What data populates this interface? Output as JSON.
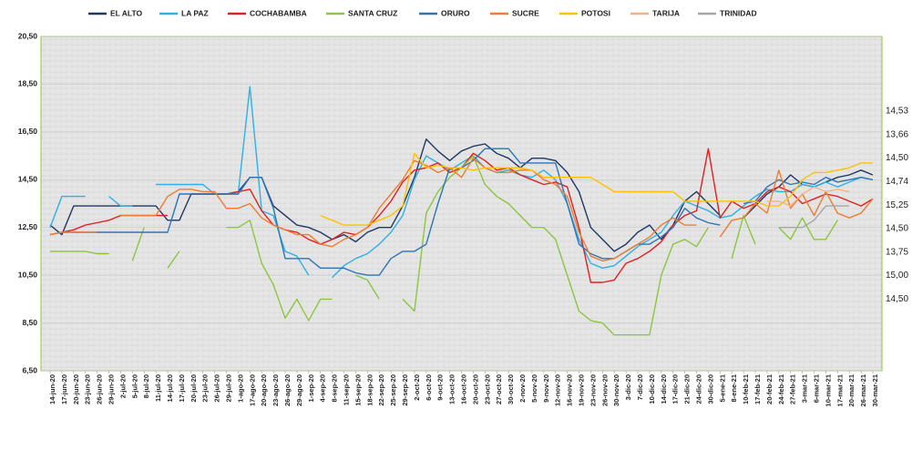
{
  "chart_data": {
    "type": "line",
    "categories": [
      "14-jun-20",
      "17-jun-20",
      "20-jun-20",
      "23-jun-20",
      "26-jun-20",
      "29-jun-20",
      "2-jul-20",
      "5-jul-20",
      "8-jul-20",
      "11-jul-20",
      "14-jul-20",
      "17-jul-20",
      "20-jul-20",
      "23-jul-20",
      "26-jul-20",
      "29-jul-20",
      "1-ago-20",
      "17-ago-20",
      "20-ago-20",
      "23-ago-20",
      "26-ago-20",
      "29-ago-20",
      "1-sep-20",
      "4-sep-20",
      "8-sep-20",
      "11-sep-20",
      "15-sep-20",
      "18-sep-20",
      "22-sep-20",
      "25-sep-20",
      "29-sep-20",
      "2-oct-20",
      "6-oct-20",
      "9-oct-20",
      "13-oct-20",
      "16-oct-20",
      "20-oct-20",
      "23-oct-20",
      "27-oct-20",
      "30-oct-20",
      "2-nov-20",
      "5-nov-20",
      "9-nov-20",
      "12-nov-20",
      "16-nov-20",
      "19-nov-20",
      "23-nov-20",
      "26-nov-20",
      "30-nov-20",
      "3-dic-20",
      "7-dic-20",
      "10-dic-20",
      "14-dic-20",
      "17-dic-20",
      "21-dic-20",
      "24-dic-20",
      "30-dic-20",
      "5-ene-21",
      "8-ene-21",
      "10-feb-21",
      "17-feb-21",
      "20-feb-21",
      "24-feb-21",
      "27-feb-21",
      "3-mar-21",
      "6-mar-21",
      "10-mar-21",
      "17-mar-21",
      "20-mar-21",
      "26-mar-21",
      "30-mar-21"
    ],
    "ylim": [
      6.5,
      20.5
    ],
    "yticks": [
      {
        "value": 6.5,
        "label": "6,50"
      },
      {
        "value": 8.5,
        "label": "8,50"
      },
      {
        "value": 10.5,
        "label": "10,50"
      },
      {
        "value": 12.5,
        "label": "12,50"
      },
      {
        "value": 14.5,
        "label": "14,50"
      },
      {
        "value": 16.5,
        "label": "16,50"
      },
      {
        "value": 18.5,
        "label": "18,50"
      },
      {
        "value": 20.5,
        "label": "20,50"
      }
    ],
    "grid": true,
    "legend": "top",
    "series": [
      {
        "name": "EL ALTO",
        "color": "#1f3864",
        "summary": {
          "value": 14.74,
          "label": "14,74"
        },
        "values": [
          12.6,
          12.2,
          13.4,
          13.4,
          13.4,
          13.4,
          13.4,
          13.4,
          13.4,
          13.4,
          12.8,
          12.8,
          13.9,
          13.9,
          13.9,
          13.9,
          14.0,
          14.6,
          14.6,
          13.4,
          13.0,
          12.6,
          12.5,
          12.3,
          12.0,
          12.2,
          11.9,
          12.3,
          12.5,
          12.5,
          13.4,
          14.6,
          16.2,
          15.7,
          15.3,
          15.7,
          15.9,
          16.0,
          15.6,
          15.4,
          15.0,
          15.4,
          15.4,
          15.3,
          14.8,
          14.0,
          12.5,
          12.0,
          11.5,
          11.8,
          12.3,
          12.6,
          12.0,
          12.6,
          13.6,
          14.0,
          13.5,
          13.0,
          null,
          12.9,
          13.4,
          13.9,
          14.2,
          14.7,
          14.3,
          14.2,
          14.4,
          14.6,
          14.7,
          14.9,
          14.7
        ]
      },
      {
        "name": "LA PAZ",
        "color": "#2eb0e8",
        "summary": {
          "value": 14.53,
          "label": "14,53"
        },
        "values": [
          12.5,
          13.8,
          13.8,
          13.8,
          null,
          13.8,
          13.4,
          13.4,
          null,
          14.3,
          14.3,
          14.3,
          14.3,
          14.3,
          13.9,
          13.9,
          13.9,
          18.4,
          13.2,
          13.0,
          11.5,
          11.3,
          10.5,
          null,
          10.4,
          10.9,
          11.2,
          11.4,
          11.8,
          12.3,
          13.0,
          14.5,
          15.5,
          15.2,
          14.9,
          15.2,
          15.5,
          15.0,
          14.8,
          14.9,
          14.7,
          14.6,
          14.9,
          14.5,
          13.5,
          12.0,
          11.0,
          10.8,
          10.9,
          11.3,
          11.7,
          12.0,
          12.3,
          13.0,
          13.6,
          13.4,
          13.2,
          12.9,
          13.0,
          13.4,
          13.8,
          14.1,
          14.0,
          14.0,
          14.3,
          14.2,
          14.4,
          14.2,
          14.4,
          14.6,
          14.5
        ]
      },
      {
        "name": "COCHABAMBA",
        "color": "#e02020",
        "summary": {
          "value": 13.66,
          "label": "13,66"
        },
        "values": [
          12.2,
          12.3,
          12.4,
          12.6,
          12.7,
          12.8,
          13.0,
          13.0,
          13.0,
          13.0,
          13.0,
          null,
          13.9,
          13.9,
          13.9,
          13.9,
          14.0,
          14.1,
          13.2,
          12.6,
          12.4,
          12.3,
          12.0,
          11.8,
          12.0,
          12.3,
          12.2,
          12.5,
          13.0,
          13.6,
          14.4,
          14.9,
          15.0,
          15.2,
          14.8,
          15.0,
          15.6,
          15.3,
          14.9,
          15.0,
          14.7,
          14.5,
          14.3,
          14.4,
          14.2,
          12.5,
          10.2,
          10.2,
          10.3,
          11.0,
          11.2,
          11.5,
          11.9,
          12.6,
          13.0,
          13.2,
          15.8,
          12.9,
          13.6,
          13.3,
          13.5,
          14.0,
          14.2,
          14.0,
          13.5,
          13.7,
          13.9,
          13.8,
          13.6,
          13.4,
          13.7
        ]
      },
      {
        "name": "SANTA CRUZ",
        "color": "#8cc63f",
        "summary": {
          "value": 15.0,
          "label": "15,00"
        },
        "values": [
          11.5,
          11.5,
          11.5,
          11.5,
          11.4,
          11.4,
          null,
          11.1,
          12.5,
          null,
          10.8,
          11.5,
          null,
          11.1,
          null,
          12.5,
          12.5,
          12.8,
          11.0,
          10.1,
          8.7,
          9.5,
          8.6,
          9.5,
          9.5,
          null,
          10.5,
          10.3,
          9.5,
          null,
          9.5,
          9.0,
          13.1,
          14.0,
          14.6,
          15.0,
          15.5,
          14.3,
          13.8,
          13.5,
          13.0,
          12.5,
          12.5,
          12.0,
          10.5,
          9.0,
          8.6,
          8.5,
          8.0,
          8.0,
          8.0,
          8.0,
          10.5,
          11.8,
          12.0,
          11.7,
          12.5,
          null,
          11.2,
          13.0,
          11.8,
          null,
          12.5,
          12.0,
          12.9,
          12.0,
          12.0,
          12.8,
          null,
          null,
          null
        ]
      },
      {
        "name": "ORURO",
        "color": "#2e75b6",
        "summary": {
          "value": 14.5,
          "label": "14,50"
        },
        "values": [
          12.2,
          12.3,
          12.3,
          12.3,
          12.3,
          12.3,
          12.3,
          12.3,
          12.3,
          12.3,
          12.3,
          13.9,
          13.9,
          13.9,
          13.9,
          13.9,
          13.9,
          14.6,
          14.6,
          13.3,
          11.2,
          11.2,
          11.2,
          10.8,
          10.8,
          10.8,
          10.6,
          10.5,
          10.5,
          11.2,
          11.5,
          11.5,
          11.8,
          13.5,
          15.0,
          15.0,
          15.3,
          15.8,
          15.8,
          15.8,
          15.2,
          15.2,
          15.2,
          15.2,
          13.5,
          11.8,
          11.4,
          11.2,
          11.2,
          11.5,
          11.8,
          11.8,
          12.1,
          12.5,
          13.3,
          12.9,
          12.7,
          12.6,
          null,
          13.5,
          13.6,
          14.2,
          14.5,
          14.3,
          14.4,
          14.3,
          14.6,
          14.4,
          14.5,
          14.6,
          14.5
        ]
      },
      {
        "name": "SUCRE",
        "color": "#ed7d31",
        "summary": {
          "value": 13.75,
          "label": "13,75"
        },
        "values": [
          12.2,
          12.3,
          12.3,
          12.3,
          12.3,
          null,
          13.0,
          13.0,
          13.0,
          13.0,
          13.8,
          14.1,
          14.1,
          14.0,
          14.0,
          13.3,
          13.3,
          13.5,
          12.9,
          12.6,
          12.4,
          12.2,
          12.2,
          11.8,
          11.7,
          12.0,
          12.2,
          12.5,
          13.3,
          13.9,
          14.5,
          15.3,
          15.1,
          14.8,
          15.0,
          14.6,
          15.4,
          15.0,
          14.8,
          14.8,
          14.9,
          14.9,
          14.5,
          14.3,
          13.8,
          12.3,
          11.3,
          11.1,
          11.2,
          11.5,
          11.8,
          12.1,
          12.6,
          12.9,
          12.6,
          12.6,
          null,
          12.1,
          12.8,
          12.9,
          13.5,
          13.1,
          14.9,
          13.3,
          13.9,
          13.0,
          14.0,
          13.1,
          12.9,
          13.1,
          13.7
        ]
      },
      {
        "name": "POTOSI",
        "color": "#ffc000",
        "summary": {
          "value": 15.25,
          "label": "15,25"
        },
        "values": [
          null,
          null,
          null,
          null,
          null,
          null,
          null,
          null,
          null,
          null,
          null,
          null,
          null,
          null,
          null,
          null,
          null,
          null,
          null,
          null,
          null,
          null,
          null,
          13.0,
          12.8,
          12.6,
          12.6,
          12.6,
          12.8,
          13.0,
          13.4,
          15.6,
          15.0,
          15.1,
          15.0,
          15.0,
          14.9,
          15.0,
          15.0,
          15.0,
          15.0,
          14.9,
          14.6,
          14.6,
          14.6,
          14.6,
          14.6,
          14.3,
          14.0,
          14.0,
          14.0,
          14.0,
          14.0,
          14.0,
          13.6,
          13.6,
          13.6,
          13.6,
          13.6,
          13.6,
          13.6,
          13.4,
          13.4,
          13.8,
          14.5,
          14.8,
          14.8,
          14.9,
          15.0,
          15.2,
          15.2
        ]
      },
      {
        "name": "TARIJA",
        "color": "#f4b183",
        "summary": {
          "value": 14.5,
          "label": "14,50"
        },
        "values": [
          null,
          null,
          null,
          null,
          null,
          null,
          null,
          null,
          null,
          null,
          null,
          null,
          null,
          null,
          null,
          null,
          null,
          null,
          null,
          null,
          null,
          null,
          null,
          null,
          null,
          null,
          null,
          null,
          null,
          null,
          null,
          null,
          null,
          null,
          null,
          null,
          null,
          null,
          null,
          null,
          null,
          null,
          null,
          null,
          null,
          null,
          null,
          null,
          null,
          null,
          null,
          null,
          null,
          null,
          null,
          null,
          null,
          null,
          null,
          null,
          null,
          13.6,
          13.6,
          13.4,
          13.9,
          14.2,
          14.0,
          14.1,
          14.0,
          null,
          null
        ]
      },
      {
        "name": "TRINIDAD",
        "color": "#a5a5a5",
        "summary": {
          "value": 14.5,
          "label": "14,50"
        },
        "values": [
          null,
          null,
          null,
          null,
          null,
          null,
          null,
          null,
          null,
          null,
          null,
          null,
          null,
          null,
          null,
          null,
          null,
          null,
          null,
          null,
          null,
          null,
          null,
          null,
          null,
          null,
          null,
          null,
          null,
          null,
          null,
          null,
          null,
          null,
          null,
          null,
          null,
          null,
          null,
          null,
          null,
          null,
          null,
          null,
          null,
          null,
          null,
          null,
          null,
          null,
          null,
          null,
          null,
          null,
          null,
          null,
          null,
          null,
          null,
          null,
          null,
          null,
          12.5,
          12.5,
          12.5,
          12.8,
          13.4,
          13.4,
          13.4,
          null,
          null
        ]
      }
    ]
  }
}
